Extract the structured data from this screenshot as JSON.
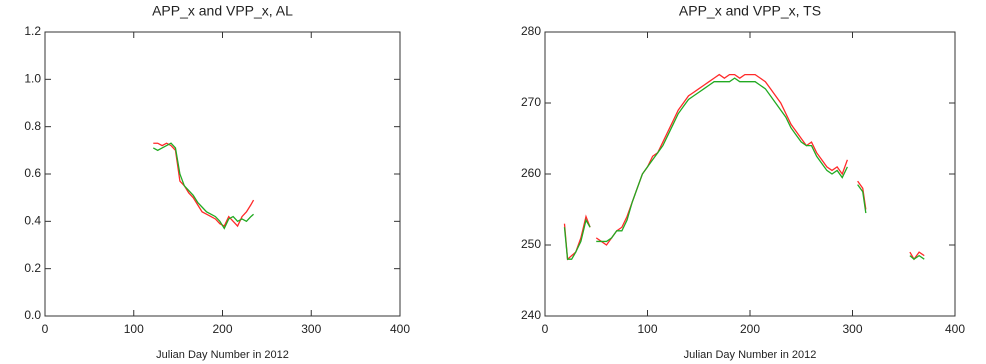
{
  "chart_data": [
    {
      "type": "line",
      "title": "APP_x and VPP_x, AL",
      "x_label": "Julian Day Number in 2012",
      "xlim": [
        0,
        400
      ],
      "xticks": [
        0,
        100,
        200,
        300,
        400
      ],
      "ylim": [
        0,
        1.2
      ],
      "yticks": [
        {
          "value": 0,
          "label": "0.0"
        },
        0.2,
        0.4,
        0.6,
        0.8,
        {
          "value": 1,
          "label": "1.0"
        },
        1.2
      ],
      "x": [
        122,
        127,
        132,
        137,
        142,
        147,
        152,
        157,
        162,
        167,
        172,
        177,
        182,
        187,
        192,
        197,
        202,
        207,
        212,
        217,
        222,
        227,
        232,
        235
      ],
      "series": [
        {
          "color": "#ff2a2a",
          "values": [
            0.73,
            0.73,
            0.72,
            0.73,
            0.72,
            0.7,
            0.57,
            0.55,
            0.52,
            0.5,
            0.47,
            0.44,
            0.43,
            0.42,
            0.41,
            0.39,
            0.38,
            0.42,
            0.4,
            0.38,
            0.42,
            0.44,
            0.47,
            0.49
          ]
        },
        {
          "color": "#22aa22",
          "values": [
            0.71,
            0.7,
            0.71,
            0.72,
            0.73,
            0.71,
            0.6,
            0.55,
            0.53,
            0.51,
            0.48,
            0.46,
            0.44,
            0.43,
            0.42,
            0.4,
            0.37,
            0.41,
            0.42,
            0.4,
            0.41,
            0.4,
            0.42,
            0.43
          ]
        }
      ]
    },
    {
      "type": "line",
      "title": "APP_x and VPP_x, TS",
      "x_label": "Julian Day Number in 2012",
      "xlim": [
        0,
        400
      ],
      "xticks": [
        0,
        100,
        200,
        300,
        400
      ],
      "ylim": [
        240,
        280
      ],
      "yticks": [
        240,
        250,
        260,
        270,
        280
      ],
      "x": [
        19,
        22,
        26,
        30,
        35,
        40,
        44,
        47,
        50,
        55,
        60,
        65,
        70,
        75,
        80,
        85,
        90,
        95,
        100,
        105,
        110,
        115,
        120,
        125,
        130,
        135,
        140,
        145,
        150,
        155,
        160,
        165,
        170,
        175,
        180,
        185,
        190,
        195,
        200,
        205,
        210,
        215,
        220,
        225,
        230,
        235,
        240,
        245,
        250,
        255,
        260,
        265,
        270,
        275,
        280,
        285,
        290,
        295,
        300,
        305,
        310,
        313,
        335,
        356,
        360,
        365,
        370
      ],
      "series": [
        {
          "color": "#ff2a2a",
          "values": [
            253,
            248,
            248.5,
            249,
            251,
            254,
            252.5,
            null,
            251,
            250.5,
            250,
            251,
            252,
            252.5,
            254,
            256,
            258,
            260,
            261,
            262.5,
            263,
            264.5,
            266,
            267.5,
            269,
            270,
            271,
            271.5,
            272,
            272.5,
            273,
            273.5,
            274,
            273.5,
            274,
            274,
            273.5,
            274,
            274,
            274,
            273.5,
            273,
            272,
            271,
            270,
            268.5,
            267,
            266,
            265,
            264,
            264.5,
            263,
            262,
            261,
            260.5,
            261,
            260,
            262,
            null,
            259,
            258,
            255,
            null,
            249,
            248,
            249,
            248.5
          ]
        },
        {
          "color": "#22aa22",
          "values": [
            252.5,
            248,
            248,
            249,
            250.5,
            253.5,
            252.5,
            null,
            250.5,
            250.5,
            250.5,
            251,
            252,
            252,
            253.5,
            256,
            258,
            260,
            261,
            262,
            263,
            264,
            265.5,
            267,
            268.5,
            269.5,
            270.5,
            271,
            271.5,
            272,
            272.5,
            273,
            273,
            273,
            273,
            273.5,
            273,
            273,
            273,
            273,
            272.5,
            272,
            271,
            270,
            269,
            268,
            266.5,
            265.5,
            264.5,
            264,
            264,
            262.5,
            261.5,
            260.5,
            260,
            260.5,
            259.5,
            261,
            null,
            258.5,
            257.5,
            254.5,
            null,
            248.5,
            248,
            248.5,
            248
          ]
        }
      ]
    }
  ]
}
